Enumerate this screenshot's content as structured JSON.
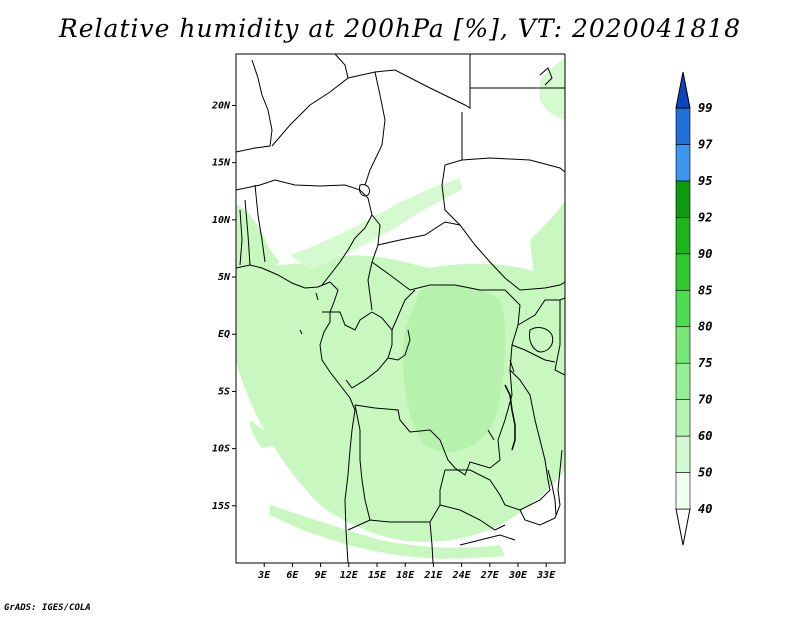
{
  "title": "Relative humidity at 200hPa [%], VT: 2020041818",
  "credit": "GrADS: IGES/COLA",
  "map": {
    "lat_labels": [
      {
        "lat": 20,
        "label": "20N"
      },
      {
        "lat": 15,
        "label": "15N"
      },
      {
        "lat": 10,
        "label": "10N"
      },
      {
        "lat": 5,
        "label": "5N"
      },
      {
        "lat": 0,
        "label": "EQ"
      },
      {
        "lat": -5,
        "label": "5S"
      },
      {
        "lat": -10,
        "label": "10S"
      },
      {
        "lat": -15,
        "label": "15S"
      }
    ],
    "lon_labels": [
      {
        "lon": 3,
        "label": "3E"
      },
      {
        "lon": 6,
        "label": "6E"
      },
      {
        "lon": 9,
        "label": "9E"
      },
      {
        "lon": 12,
        "label": "12E"
      },
      {
        "lon": 15,
        "label": "15E"
      },
      {
        "lon": 18,
        "label": "18E"
      },
      {
        "lon": 21,
        "label": "21E"
      },
      {
        "lon": 24,
        "label": "24E"
      },
      {
        "lon": 27,
        "label": "27E"
      },
      {
        "lon": 30,
        "label": "30E"
      },
      {
        "lon": 33,
        "label": "33E"
      }
    ],
    "lat_range": [
      -20,
      24.5
    ],
    "lon_range": [
      0,
      35
    ]
  },
  "colorbar": {
    "levels": [
      "40",
      "50",
      "60",
      "70",
      "75",
      "80",
      "85",
      "90",
      "92",
      "95",
      "97",
      "99"
    ],
    "colors": [
      "#f0fff0",
      "#d2fad2",
      "#b4f5b4",
      "#96ee96",
      "#78e678",
      "#50dc50",
      "#32c832",
      "#1eb41e",
      "#0f9b0f",
      "#3c96f0",
      "#1e6edc",
      "#0a46be"
    ]
  }
}
